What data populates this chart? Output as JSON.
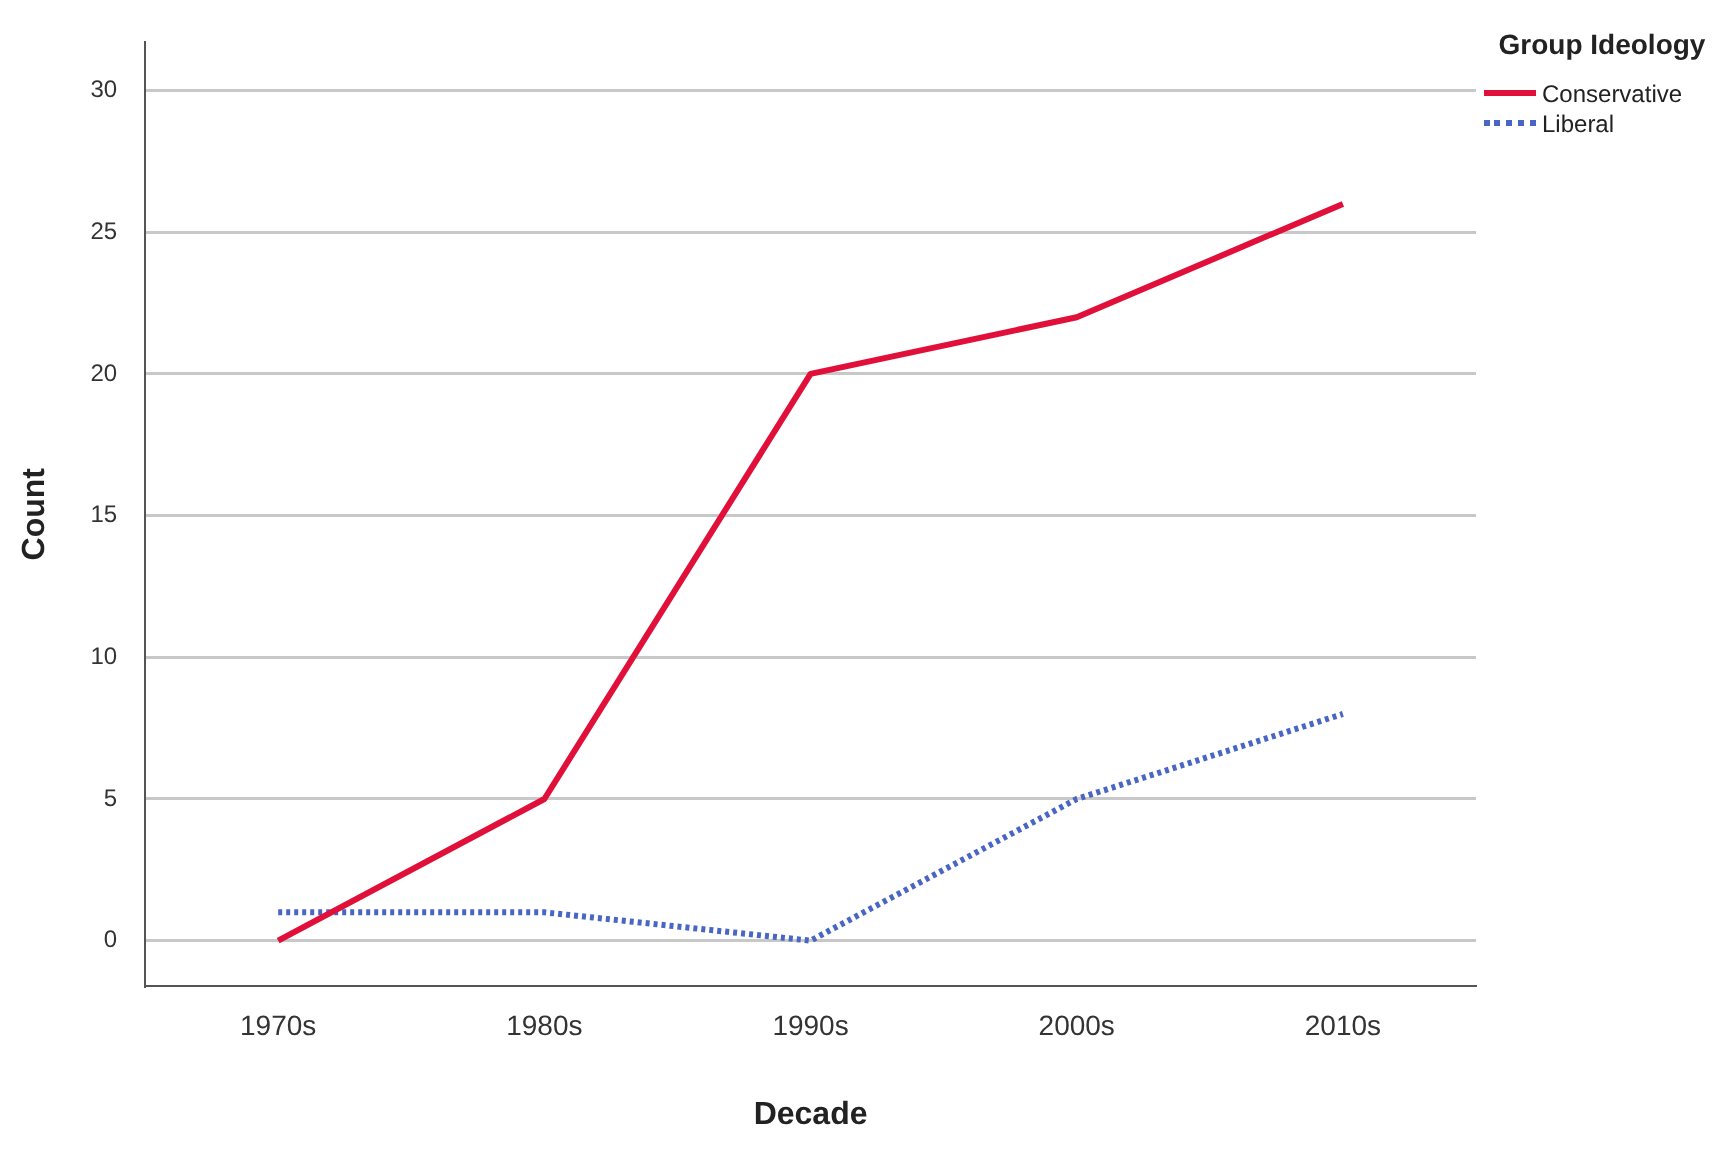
{
  "chart_data": {
    "type": "line",
    "xlabel": "Decade",
    "ylabel": "Count",
    "legend_title": "Group Ideology",
    "categories": [
      "1970s",
      "1980s",
      "1990s",
      "2000s",
      "2010s"
    ],
    "series": [
      {
        "name": "Conservative",
        "color": "#e0103a",
        "values": [
          0,
          5,
          20,
          22,
          26
        ],
        "line_style": "solid"
      },
      {
        "name": "Liberal",
        "color": "#4a66c4",
        "values": [
          1,
          1,
          0,
          5,
          8
        ],
        "line_style": "dotted"
      }
    ],
    "ylim": [
      -1.6,
      31.7
    ],
    "yticks": [
      0,
      5,
      10,
      15,
      20,
      25,
      30
    ],
    "grid": "y",
    "legend": "top right",
    "marker": "none"
  }
}
